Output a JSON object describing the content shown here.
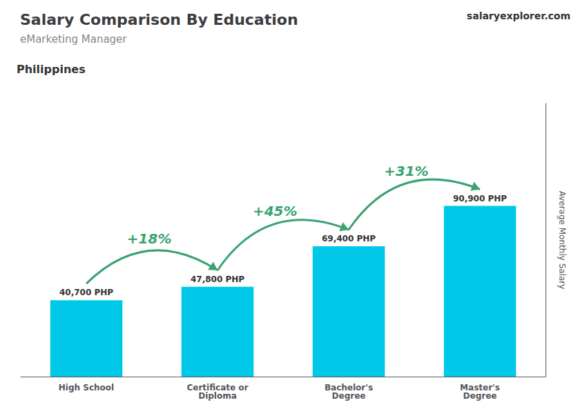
{
  "chart_data": {
    "type": "bar",
    "title": "Salary Comparison By Education",
    "subtitle": "eMarketing Manager",
    "y_label": "Average Monthly Salary",
    "categories": [
      "High School",
      "Certificate or\nDiploma",
      "Bachelor's\nDegree",
      "Master's\nDegree"
    ],
    "values": [
      40700,
      47800,
      69400,
      90900
    ],
    "value_labels": [
      "40,700 PHP",
      "47,800 PHP",
      "69,400 PHP",
      "90,900 PHP"
    ],
    "data_labels": true,
    "color": "#00c8e8",
    "ylim": [
      0,
      145440
    ],
    "yticks": [],
    "tick_labels": "x",
    "grid": false,
    "annotations": [
      {
        "text": "Philippines"
      },
      {
        "text": "salaryexplorer.com"
      },
      {
        "text": "+18%",
        "from": "High School",
        "to": "Certificate or\nDiploma"
      },
      {
        "text": "+45%",
        "from": "Certificate or\nDiploma",
        "to": "Bachelor's\nDegree"
      },
      {
        "text": "+31%",
        "from": "Bachelor's\nDegree",
        "to": "Master's\nDegree"
      }
    ]
  }
}
